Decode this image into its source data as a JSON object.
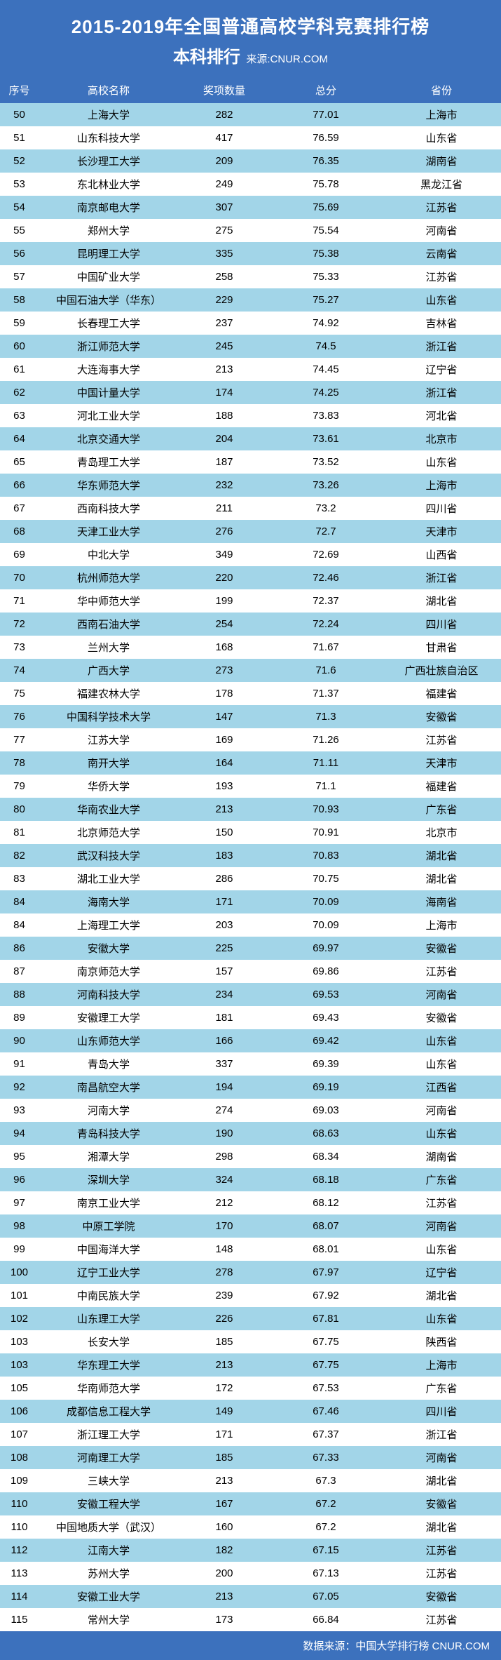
{
  "header": {
    "title_main": "2015-2019年全国普通高校学科竞赛排行榜",
    "title_sub": "本科排行",
    "source_label": "来源:CNUR.COM",
    "bg_color": "#3c71bd",
    "text_color": "#ffffff"
  },
  "table": {
    "header_bg": "#3c71bd",
    "row_even_bg": "#a2d5e8",
    "row_odd_bg": "#ffffff",
    "columns": [
      "序号",
      "高校名称",
      "奖项数量",
      "总分",
      "省份"
    ],
    "rows": [
      [
        50,
        "上海大学",
        282,
        "77.01",
        "上海市"
      ],
      [
        51,
        "山东科技大学",
        417,
        "76.59",
        "山东省"
      ],
      [
        52,
        "长沙理工大学",
        209,
        "76.35",
        "湖南省"
      ],
      [
        53,
        "东北林业大学",
        249,
        "75.78",
        "黑龙江省"
      ],
      [
        54,
        "南京邮电大学",
        307,
        "75.69",
        "江苏省"
      ],
      [
        55,
        "郑州大学",
        275,
        "75.54",
        "河南省"
      ],
      [
        56,
        "昆明理工大学",
        335,
        "75.38",
        "云南省"
      ],
      [
        57,
        "中国矿业大学",
        258,
        "75.33",
        "江苏省"
      ],
      [
        58,
        "中国石油大学（华东）",
        229,
        "75.27",
        "山东省"
      ],
      [
        59,
        "长春理工大学",
        237,
        "74.92",
        "吉林省"
      ],
      [
        60,
        "浙江师范大学",
        245,
        "74.5",
        "浙江省"
      ],
      [
        61,
        "大连海事大学",
        213,
        "74.45",
        "辽宁省"
      ],
      [
        62,
        "中国计量大学",
        174,
        "74.25",
        "浙江省"
      ],
      [
        63,
        "河北工业大学",
        188,
        "73.83",
        "河北省"
      ],
      [
        64,
        "北京交通大学",
        204,
        "73.61",
        "北京市"
      ],
      [
        65,
        "青岛理工大学",
        187,
        "73.52",
        "山东省"
      ],
      [
        66,
        "华东师范大学",
        232,
        "73.26",
        "上海市"
      ],
      [
        67,
        "西南科技大学",
        211,
        "73.2",
        "四川省"
      ],
      [
        68,
        "天津工业大学",
        276,
        "72.7",
        "天津市"
      ],
      [
        69,
        "中北大学",
        349,
        "72.69",
        "山西省"
      ],
      [
        70,
        "杭州师范大学",
        220,
        "72.46",
        "浙江省"
      ],
      [
        71,
        "华中师范大学",
        199,
        "72.37",
        "湖北省"
      ],
      [
        72,
        "西南石油大学",
        254,
        "72.24",
        "四川省"
      ],
      [
        73,
        "兰州大学",
        168,
        "71.67",
        "甘肃省"
      ],
      [
        74,
        "广西大学",
        273,
        "71.6",
        "广西壮族自治区"
      ],
      [
        75,
        "福建农林大学",
        178,
        "71.37",
        "福建省"
      ],
      [
        76,
        "中国科学技术大学",
        147,
        "71.3",
        "安徽省"
      ],
      [
        77,
        "江苏大学",
        169,
        "71.26",
        "江苏省"
      ],
      [
        78,
        "南开大学",
        164,
        "71.11",
        "天津市"
      ],
      [
        79,
        "华侨大学",
        193,
        "71.1",
        "福建省"
      ],
      [
        80,
        "华南农业大学",
        213,
        "70.93",
        "广东省"
      ],
      [
        81,
        "北京师范大学",
        150,
        "70.91",
        "北京市"
      ],
      [
        82,
        "武汉科技大学",
        183,
        "70.83",
        "湖北省"
      ],
      [
        83,
        "湖北工业大学",
        286,
        "70.75",
        "湖北省"
      ],
      [
        84,
        "海南大学",
        171,
        "70.09",
        "海南省"
      ],
      [
        84,
        "上海理工大学",
        203,
        "70.09",
        "上海市"
      ],
      [
        86,
        "安徽大学",
        225,
        "69.97",
        "安徽省"
      ],
      [
        87,
        "南京师范大学",
        157,
        "69.86",
        "江苏省"
      ],
      [
        88,
        "河南科技大学",
        234,
        "69.53",
        "河南省"
      ],
      [
        89,
        "安徽理工大学",
        181,
        "69.43",
        "安徽省"
      ],
      [
        90,
        "山东师范大学",
        166,
        "69.42",
        "山东省"
      ],
      [
        91,
        "青岛大学",
        337,
        "69.39",
        "山东省"
      ],
      [
        92,
        "南昌航空大学",
        194,
        "69.19",
        "江西省"
      ],
      [
        93,
        "河南大学",
        274,
        "69.03",
        "河南省"
      ],
      [
        94,
        "青岛科技大学",
        190,
        "68.63",
        "山东省"
      ],
      [
        95,
        "湘潭大学",
        298,
        "68.34",
        "湖南省"
      ],
      [
        96,
        "深圳大学",
        324,
        "68.18",
        "广东省"
      ],
      [
        97,
        "南京工业大学",
        212,
        "68.12",
        "江苏省"
      ],
      [
        98,
        "中原工学院",
        170,
        "68.07",
        "河南省"
      ],
      [
        99,
        "中国海洋大学",
        148,
        "68.01",
        "山东省"
      ],
      [
        100,
        "辽宁工业大学",
        278,
        "67.97",
        "辽宁省"
      ],
      [
        101,
        "中南民族大学",
        239,
        "67.92",
        "湖北省"
      ],
      [
        102,
        "山东理工大学",
        226,
        "67.81",
        "山东省"
      ],
      [
        103,
        "长安大学",
        185,
        "67.75",
        "陕西省"
      ],
      [
        103,
        "华东理工大学",
        213,
        "67.75",
        "上海市"
      ],
      [
        105,
        "华南师范大学",
        172,
        "67.53",
        "广东省"
      ],
      [
        106,
        "成都信息工程大学",
        149,
        "67.46",
        "四川省"
      ],
      [
        107,
        "浙江理工大学",
        171,
        "67.37",
        "浙江省"
      ],
      [
        108,
        "河南理工大学",
        185,
        "67.33",
        "河南省"
      ],
      [
        109,
        "三峡大学",
        213,
        "67.3",
        "湖北省"
      ],
      [
        110,
        "安徽工程大学",
        167,
        "67.2",
        "安徽省"
      ],
      [
        110,
        "中国地质大学（武汉）",
        160,
        "67.2",
        "湖北省"
      ],
      [
        112,
        "江南大学",
        182,
        "67.15",
        "江苏省"
      ],
      [
        113,
        "苏州大学",
        200,
        "67.13",
        "江苏省"
      ],
      [
        114,
        "安徽工业大学",
        213,
        "67.05",
        "安徽省"
      ],
      [
        115,
        "常州大学",
        173,
        "66.84",
        "江苏省"
      ]
    ]
  },
  "footer": {
    "text": "数据来源：中国大学排行榜  CNUR.COM",
    "bg_color": "#3c71bd"
  }
}
